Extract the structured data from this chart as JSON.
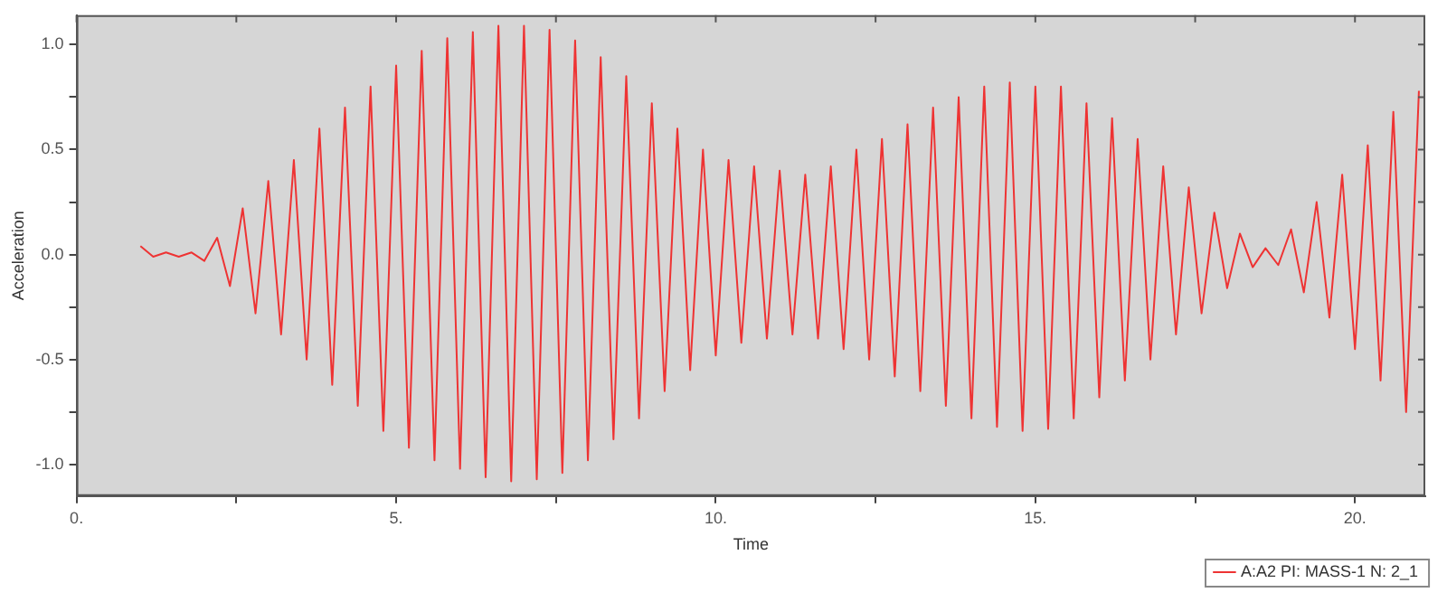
{
  "chart_data": {
    "type": "line",
    "xlabel": "Time",
    "ylabel": "Acceleration",
    "xlim": [
      0,
      21.1
    ],
    "ylim": [
      -1.15,
      1.14
    ],
    "xticks": [
      {
        "value": 0,
        "label": "0."
      },
      {
        "value": 2.5,
        "label": null
      },
      {
        "value": 5,
        "label": "5."
      },
      {
        "value": 7.5,
        "label": null
      },
      {
        "value": 10,
        "label": "10."
      },
      {
        "value": 12.5,
        "label": null
      },
      {
        "value": 15,
        "label": "15."
      },
      {
        "value": 17.5,
        "label": null
      },
      {
        "value": 20,
        "label": "20."
      }
    ],
    "yticks": [
      {
        "value": -1,
        "label": "-1.0"
      },
      {
        "value": -0.75,
        "label": null
      },
      {
        "value": -0.5,
        "label": "-0.5"
      },
      {
        "value": -0.25,
        "label": null
      },
      {
        "value": 0,
        "label": "0.0"
      },
      {
        "value": 0.25,
        "label": null
      },
      {
        "value": 0.5,
        "label": "0.5"
      },
      {
        "value": 0.75,
        "label": null
      },
      {
        "value": 1,
        "label": "1.0"
      }
    ],
    "grid": false,
    "legend": "bottom right",
    "marker": "none",
    "line_style": "solid",
    "series": [
      {
        "name": "A:A2 PI: MASS-1 N: 2_1",
        "color": "#ee3333",
        "x": [
          1.0,
          1.2,
          1.4,
          1.6,
          1.8,
          2.0,
          2.2,
          2.4,
          2.6,
          2.8,
          3.0,
          3.2,
          3.4,
          3.6,
          3.8,
          4.0,
          4.2,
          4.4,
          4.6,
          4.8,
          5.0,
          5.2,
          5.4,
          5.6,
          5.8,
          6.0,
          6.2,
          6.4,
          6.6,
          6.8,
          7.0,
          7.2,
          7.4,
          7.6,
          7.8,
          8.0,
          8.2,
          8.4,
          8.6,
          8.8,
          9.0,
          9.2,
          9.4,
          9.6,
          9.8,
          10.0,
          10.2,
          10.4,
          10.6,
          10.8,
          11.0,
          11.2,
          11.4,
          11.6,
          11.8,
          12.0,
          12.2,
          12.4,
          12.6,
          12.8,
          13.0,
          13.2,
          13.4,
          13.6,
          13.8,
          14.0,
          14.2,
          14.4,
          14.6,
          14.8,
          15.0,
          15.2,
          15.4,
          15.6,
          15.8,
          16.0,
          16.2,
          16.4,
          16.6,
          16.8,
          17.0,
          17.2,
          17.4,
          17.6,
          17.8,
          18.0,
          18.2,
          18.4,
          18.6,
          18.8,
          19.0,
          19.2,
          19.4,
          19.6,
          19.8,
          20.0,
          20.2,
          20.4,
          20.6,
          20.8,
          21.0
        ],
        "values": [
          0.04,
          -0.01,
          0.01,
          -0.01,
          0.01,
          -0.03,
          0.08,
          -0.15,
          0.22,
          -0.28,
          0.35,
          -0.38,
          0.45,
          -0.5,
          0.6,
          -0.62,
          0.7,
          -0.72,
          0.8,
          -0.84,
          0.9,
          -0.92,
          0.97,
          -0.98,
          1.03,
          -1.02,
          1.06,
          -1.06,
          1.09,
          -1.08,
          1.09,
          -1.07,
          1.07,
          -1.04,
          1.02,
          -0.98,
          0.94,
          -0.88,
          0.85,
          -0.78,
          0.72,
          -0.65,
          0.6,
          -0.55,
          0.5,
          -0.48,
          0.45,
          -0.42,
          0.42,
          -0.4,
          0.4,
          -0.38,
          0.38,
          -0.4,
          0.42,
          -0.45,
          0.5,
          -0.5,
          0.55,
          -0.58,
          0.62,
          -0.65,
          0.7,
          -0.72,
          0.75,
          -0.78,
          0.8,
          -0.82,
          0.82,
          -0.84,
          0.8,
          -0.83,
          0.8,
          -0.78,
          0.72,
          -0.68,
          0.65,
          -0.6,
          0.55,
          -0.5,
          0.42,
          -0.38,
          0.32,
          -0.28,
          0.2,
          -0.16,
          0.1,
          -0.06,
          0.03,
          -0.05,
          0.12,
          -0.18,
          0.25,
          -0.3,
          0.38,
          -0.45,
          0.52,
          -0.6,
          0.68,
          -0.75,
          0.78
        ]
      }
    ]
  }
}
